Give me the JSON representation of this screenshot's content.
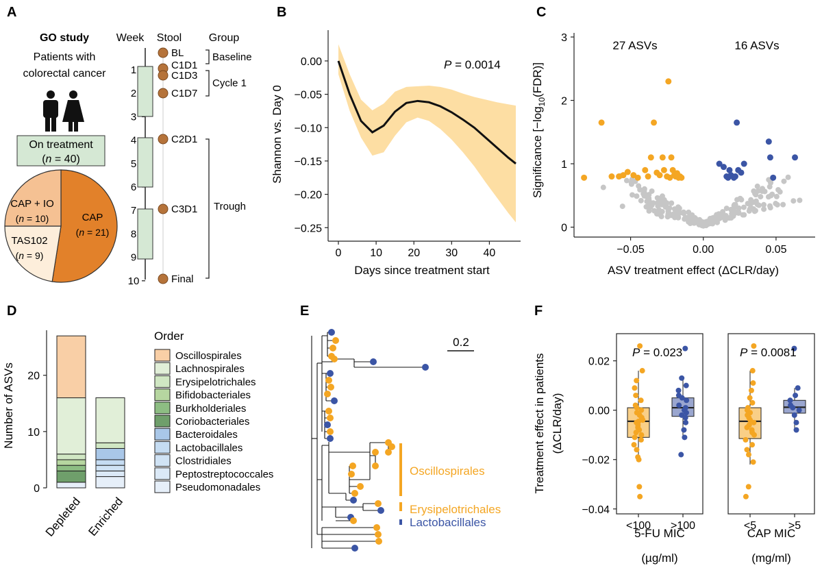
{
  "panel_labels": [
    "A",
    "B",
    "C",
    "D",
    "E",
    "F"
  ],
  "colors": {
    "orange": "#f4a623",
    "orange_dark": "#e2812a",
    "blue": "#3b55a5",
    "grey": "#c6c6c6",
    "ribbon": "#fddea3",
    "green_box": "#d5e8d4",
    "stool_brown": "#b5733a",
    "pie_cap": "#e2812a",
    "pie_capio": "#f5c193",
    "pie_tas": "#fdeedb",
    "box_orange": "#f9cf87",
    "box_blue": "#9aa6cf"
  },
  "panelA": {
    "title": "GO study",
    "patients_line1": "Patients with",
    "patients_line2": "colorectal cancer",
    "person_icons": [
      "man-icon",
      "woman-icon"
    ],
    "treatment_line1": "On treatment",
    "treatment_n_prefix": "(",
    "treatment_n_italic": "n",
    "treatment_n_value": " = 40)",
    "pie": {
      "slices": [
        {
          "name": "CAP",
          "n_text": " = 21)",
          "value": 21
        },
        {
          "name": "TAS102",
          "n_text": " = 9)",
          "value": 9
        },
        {
          "name": "CAP + IO",
          "n_text": " = 10)",
          "value": 10
        }
      ]
    },
    "col_week": "Week",
    "col_stool": "Stool",
    "col_group": "Group",
    "weeks": [
      "1",
      "2",
      "3",
      "4",
      "5",
      "6",
      "7",
      "8",
      "9",
      "10"
    ],
    "stool_labels": [
      "BL",
      "C1D1",
      "C1D3",
      "C1D7",
      "C2D1",
      "C3D1",
      "Final"
    ],
    "groups": [
      "Baseline",
      "Cycle 1",
      "Trough"
    ]
  },
  "panelB": {
    "ylabel": "Shannon vs. Day 0",
    "xlabel": "Days since treatment start",
    "p_label": "P",
    "p_value": " = 0.0014",
    "xticks": [
      "0",
      "10",
      "20",
      "30",
      "40"
    ],
    "yticks": [
      "0.00",
      "−0.05",
      "−0.10",
      "−0.15",
      "−0.20",
      "−0.25"
    ],
    "chart_data": {
      "type": "line",
      "xlabel": "Days since treatment start",
      "ylabel": "Shannon vs. Day 0",
      "xlim": [
        0,
        47
      ],
      "ylim": [
        -0.26,
        0.04
      ],
      "x": [
        0,
        3,
        6,
        9,
        12,
        15,
        18,
        21,
        24,
        27,
        30,
        33,
        36,
        39,
        42,
        45,
        47
      ],
      "y": [
        0.0,
        -0.05,
        -0.09,
        -0.107,
        -0.097,
        -0.076,
        -0.063,
        -0.06,
        -0.062,
        -0.068,
        -0.077,
        -0.088,
        -0.1,
        -0.115,
        -0.13,
        -0.145,
        -0.154
      ],
      "lower": [
        -0.02,
        -0.075,
        -0.115,
        -0.142,
        -0.137,
        -0.112,
        -0.092,
        -0.085,
        -0.09,
        -0.102,
        -0.118,
        -0.137,
        -0.158,
        -0.182,
        -0.205,
        -0.228,
        -0.242
      ],
      "upper": [
        0.025,
        -0.02,
        -0.058,
        -0.074,
        -0.064,
        -0.046,
        -0.039,
        -0.038,
        -0.037,
        -0.039,
        -0.043,
        -0.049,
        -0.054,
        -0.058,
        -0.062,
        -0.065,
        -0.067
      ]
    }
  },
  "panelC": {
    "ylabel_part1": "Significance [−log",
    "ylabel_sub": "10",
    "ylabel_part2": "(FDR)]",
    "xlabel": "ASV treatment effect (ΔCLR/day)",
    "left_label": "27 ASVs",
    "right_label": "16 ASVs",
    "xticks": [
      "−0.05",
      "0.00",
      "0.05"
    ],
    "yticks": [
      "0",
      "1",
      "2",
      "3"
    ],
    "chart_data": {
      "type": "scatter",
      "xlabel": "ASV treatment effect (ΔCLR/day)",
      "ylabel": "Significance [−log10(FDR)]",
      "xlim": [
        -0.087,
        0.075
      ],
      "ylim": [
        -0.07,
        3.0
      ],
      "series": [
        {
          "points": [
            [
              -0.082,
              0.78
            ],
            [
              -0.07,
              1.65
            ],
            [
              -0.063,
              0.8
            ],
            [
              -0.058,
              0.8
            ],
            [
              -0.055,
              0.82
            ],
            [
              -0.052,
              0.87
            ],
            [
              -0.048,
              0.82
            ],
            [
              -0.045,
              0.78
            ],
            [
              -0.04,
              0.9
            ],
            [
              -0.038,
              0.8
            ],
            [
              -0.036,
              1.1
            ],
            [
              -0.034,
              1.65
            ],
            [
              -0.032,
              0.86
            ],
            [
              -0.03,
              0.82
            ],
            [
              -0.028,
              1.1
            ],
            [
              -0.027,
              0.9
            ],
            [
              -0.025,
              0.8
            ],
            [
              -0.024,
              2.3
            ],
            [
              -0.023,
              0.78
            ],
            [
              -0.022,
              1.1
            ],
            [
              -0.021,
              0.9
            ],
            [
              -0.02,
              0.82
            ],
            [
              -0.019,
              0.8
            ],
            [
              -0.018,
              0.85
            ],
            [
              -0.017,
              0.78
            ],
            [
              -0.016,
              0.8
            ],
            [
              -0.015,
              0.78
            ]
          ]
        },
        {
          "points": [
            [
              0.011,
              1.0
            ],
            [
              0.014,
              0.95
            ],
            [
              0.016,
              0.8
            ],
            [
              0.017,
              0.78
            ],
            [
              0.018,
              0.9
            ],
            [
              0.019,
              0.82
            ],
            [
              0.021,
              0.78
            ],
            [
              0.022,
              0.8
            ],
            [
              0.023,
              1.65
            ],
            [
              0.024,
              0.9
            ],
            [
              0.026,
              0.86
            ],
            [
              0.028,
              1.0
            ],
            [
              0.045,
              1.35
            ],
            [
              0.046,
              1.1
            ],
            [
              0.048,
              0.78
            ],
            [
              0.063,
              1.1
            ]
          ]
        }
      ]
    }
  },
  "panelD": {
    "ylabel": "Number of ASVs",
    "yticks": [
      "0",
      "10",
      "20"
    ],
    "categories": [
      "Depleted",
      "Enriched"
    ],
    "legend_title": "Order",
    "orders": [
      {
        "name": "Oscillospirales",
        "color": "#f9cfa6"
      },
      {
        "name": "Lachnospirales",
        "color": "#e1efd8"
      },
      {
        "name": "Erysipelotrichales",
        "color": "#d0e7c3"
      },
      {
        "name": "Bifidobacteriales",
        "color": "#b6d6a0"
      },
      {
        "name": "Burkholderiales",
        "color": "#8dbd83"
      },
      {
        "name": "Coriobacteriales",
        "color": "#6f9f6b"
      },
      {
        "name": "Bacteroidales",
        "color": "#a9c7e8"
      },
      {
        "name": "Lactobacillales",
        "color": "#c5dcf2"
      },
      {
        "name": "Clostridiales",
        "color": "#d0e3f5"
      },
      {
        "name": "Peptostreptococcales",
        "color": "#dbe9f7"
      },
      {
        "name": "Pseudomonadales",
        "color": "#e6eff9"
      }
    ],
    "chart_data": {
      "type": "bar",
      "ylabel": "Number of ASVs",
      "categories": [
        "Depleted",
        "Enriched"
      ],
      "ylim": [
        0,
        28
      ],
      "series": [
        {
          "name": "Oscillospirales",
          "values": [
            11,
            0
          ]
        },
        {
          "name": "Lachnospirales",
          "values": [
            10,
            8
          ]
        },
        {
          "name": "Erysipelotrichales",
          "values": [
            1,
            1
          ]
        },
        {
          "name": "Bifidobacteriales",
          "values": [
            1,
            0
          ]
        },
        {
          "name": "Burkholderiales",
          "values": [
            1,
            0
          ]
        },
        {
          "name": "Coriobacteriales",
          "values": [
            2,
            0
          ]
        },
        {
          "name": "Bacteroidales",
          "values": [
            0,
            2
          ]
        },
        {
          "name": "Lactobacillales",
          "values": [
            0,
            1
          ]
        },
        {
          "name": "Clostridiales",
          "values": [
            0,
            1
          ]
        },
        {
          "name": "Peptostreptococcales",
          "values": [
            0,
            1
          ]
        },
        {
          "name": "Pseudomonadales",
          "values": [
            1,
            2
          ]
        }
      ]
    }
  },
  "panelE": {
    "scale_label": "0.2",
    "clade_labels": [
      "Oscillospirales",
      "Erysipelotrichales",
      "Lactobacillales"
    ]
  },
  "panelF": {
    "ylabel_line1": "Treatment effect in patients",
    "ylabel_line2": "(ΔCLR/day)",
    "yticks": [
      "0.02",
      "0.00",
      "−0.02",
      "−0.04"
    ],
    "facets": [
      {
        "p_label": "P",
        "p_value": " = 0.023",
        "xticks": [
          "<100",
          ">100"
        ],
        "xlabel": "5-FU MIC",
        "unit": "(µg/ml)"
      },
      {
        "p_label": "P",
        "p_value": " = 0.0081",
        "xticks": [
          "<5",
          ">5"
        ],
        "xlabel": "CAP MIC",
        "unit": "(mg/ml)"
      }
    ],
    "chart_data": {
      "type": "box",
      "ylabel": "Treatment effect in patients (ΔCLR/day)",
      "ylim": [
        -0.042,
        0.031
      ],
      "facets": [
        {
          "xlabel": "5-FU MIC",
          "boxes": [
            {
              "category": "<100",
              "q1": -0.011,
              "median": -0.0045,
              "q3": 0.001,
              "whisker_low": -0.02,
              "whisker_high": 0.016,
              "points": [
                0.026,
                0.016,
                0.012,
                0.009,
                0.006,
                0.004,
                0.002,
                0.001,
                0.0,
                -0.001,
                -0.002,
                -0.003,
                -0.004,
                -0.0045,
                -0.005,
                -0.006,
                -0.007,
                -0.008,
                -0.009,
                -0.01,
                -0.011,
                -0.012,
                -0.014,
                -0.016,
                -0.019,
                -0.02,
                -0.031,
                -0.035
              ]
            },
            {
              "category": ">100",
              "q1": -0.0025,
              "median": 0.001,
              "q3": 0.005,
              "whisker_low": -0.011,
              "whisker_high": 0.013,
              "points": [
                0.025,
                0.013,
                0.01,
                0.008,
                0.006,
                0.005,
                0.004,
                0.002,
                0.001,
                0.0,
                -0.001,
                -0.002,
                -0.003,
                -0.005,
                -0.008,
                -0.011,
                -0.018
              ]
            }
          ]
        },
        {
          "xlabel": "CAP MIC",
          "boxes": [
            {
              "category": "<5",
              "q1": -0.0115,
              "median": -0.0045,
              "q3": 0.001,
              "whisker_low": -0.022,
              "whisker_high": 0.016,
              "points": [
                0.026,
                0.016,
                0.011,
                0.008,
                0.005,
                0.003,
                0.001,
                0.0,
                -0.001,
                -0.002,
                -0.003,
                -0.004,
                -0.005,
                -0.006,
                -0.007,
                -0.008,
                -0.009,
                -0.01,
                -0.012,
                -0.014,
                -0.016,
                -0.018,
                -0.021,
                -0.031,
                -0.035
              ]
            },
            {
              "category": ">5",
              "q1": -0.0012,
              "median": 0.0012,
              "q3": 0.004,
              "whisker_low": -0.008,
              "whisker_high": 0.009,
              "points": [
                0.025,
                0.009,
                0.006,
                0.004,
                0.002,
                0.001,
                0.0,
                -0.002,
                -0.005,
                -0.008
              ]
            }
          ]
        }
      ]
    }
  }
}
